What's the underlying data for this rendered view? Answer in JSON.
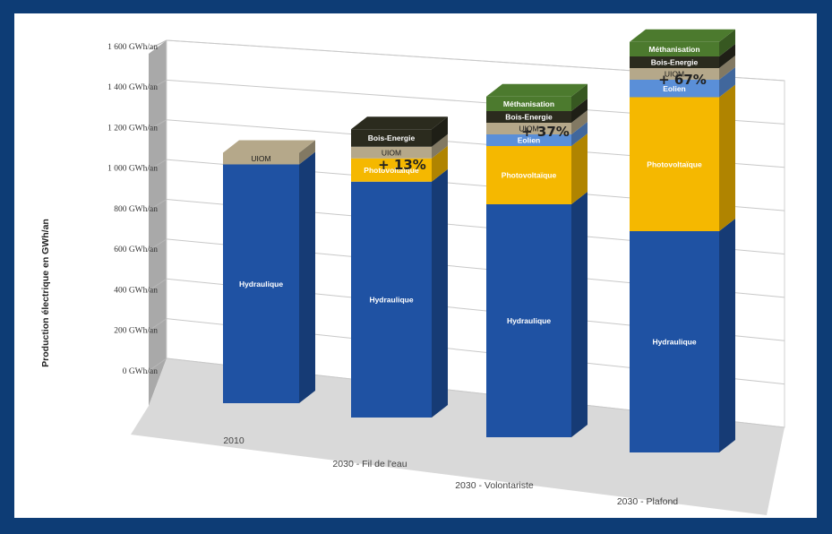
{
  "chart_data": {
    "type": "bar",
    "stacked": true,
    "three_d": true,
    "ylabel": "Production électrique en GWh/an",
    "ylim": [
      0,
      1600
    ],
    "yticks": [
      "0 GWh/an",
      "200 GWh/an",
      "400 GWh/an",
      "600 GWh/an",
      "800 GWh/an",
      "1 000 GWh/an",
      "1 200 GWh/an",
      "1 400 GWh/an",
      "1 600 GWh/an"
    ],
    "grid": true,
    "legend": "none",
    "categories": [
      "2010",
      "2030 - Fil de l'eau",
      "2030 - Volontariste",
      "2030 - Plafond"
    ],
    "increase_labels": [
      "",
      "+ 13%",
      "+ 37%",
      "+ 67%"
    ],
    "series": [
      {
        "name": "Hydraulique",
        "color": "#1f52a3",
        "values": [
          820,
          810,
          800,
          760
        ]
      },
      {
        "name": "Photovoltaïque",
        "color": "#f5b800",
        "values": [
          0,
          80,
          200,
          460
        ]
      },
      {
        "name": "Eolien",
        "color": "#5a8fd8",
        "values": [
          0,
          0,
          40,
          60
        ]
      },
      {
        "name": "UIOM",
        "color": "#b5a88a",
        "values": [
          40,
          40,
          40,
          40
        ]
      },
      {
        "name": "Bois-Energie",
        "color": "#2b2b1e",
        "values": [
          0,
          60,
          40,
          40
        ]
      },
      {
        "name": "Méthanisation",
        "color": "#4c7a2e",
        "values": [
          0,
          0,
          50,
          50
        ]
      }
    ],
    "segment_labels": [
      [
        "Hydraulique",
        "",
        "",
        "UIOM",
        "",
        ""
      ],
      [
        "Hydraulique",
        "Photovoltaïque",
        "",
        "UIOM",
        "Bois-Energie",
        ""
      ],
      [
        "Hydraulique",
        "Photovoltaïque",
        "Eolien",
        "UIOM",
        "Bois-Energie",
        "Méthanisation"
      ],
      [
        "Hydraulique",
        "Photovoltaïque",
        "Eolien",
        "UIOM",
        "Bois-Energie",
        "Méthanisation"
      ]
    ]
  }
}
